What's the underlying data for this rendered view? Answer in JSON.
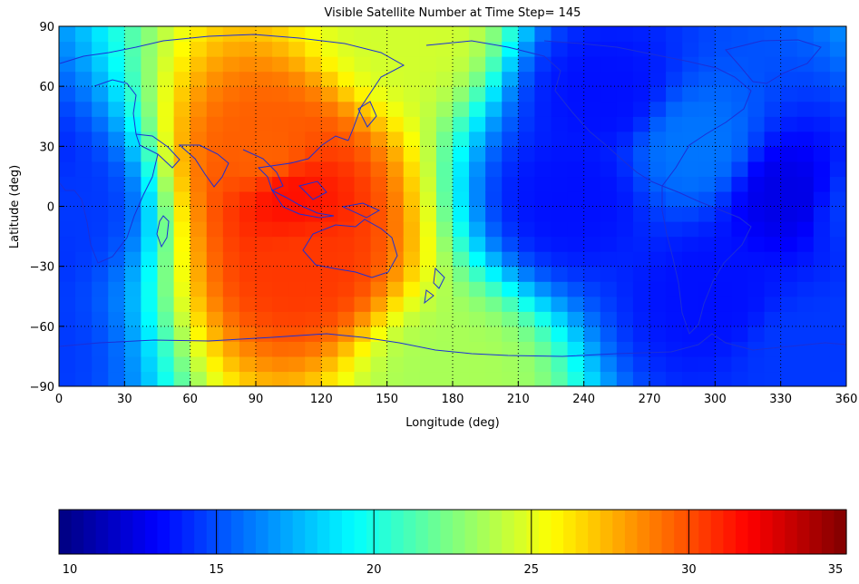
{
  "chart_data": [
    {
      "type": "heatmap",
      "title": "Visible Satellite Number at Time Step= 145",
      "xlabel": "Longitude (deg)",
      "ylabel": "Latitude (deg)",
      "xlim": [
        0,
        360
      ],
      "ylim": [
        -90,
        90
      ],
      "x_ticks": [
        0,
        30,
        60,
        90,
        120,
        150,
        180,
        210,
        240,
        270,
        300,
        330,
        360
      ],
      "y_ticks": [
        -90,
        -60,
        -30,
        0,
        30,
        60,
        90
      ],
      "x_tick_labels": [
        "0",
        "30",
        "60",
        "90",
        "120",
        "150",
        "180",
        "210",
        "240",
        "270",
        "300",
        "330",
        "360"
      ],
      "y_tick_labels": [
        "−90",
        "−60",
        "−30",
        "0",
        "30",
        "60",
        "90"
      ],
      "grid": "dotted",
      "overlay": "coastlines",
      "colormap": "jet",
      "clim": [
        10,
        35
      ],
      "color_scale": {
        "start_color": "#00008f",
        "end_color": "#800000"
      },
      "field_features": [
        {
          "lon": 105,
          "lat": 5,
          "value": 31.5
        },
        {
          "lon": 95,
          "lat": 25,
          "value": 29.5
        },
        {
          "lon": 110,
          "lat": -28,
          "value": 30.5
        },
        {
          "lon": 235,
          "lat": 5,
          "value": 13.5
        },
        {
          "lon": 250,
          "lat": 55,
          "value": 13.5
        },
        {
          "lon": 335,
          "lat": 5,
          "value": 12.5
        },
        {
          "lon": 300,
          "lat": -45,
          "value": 13.5
        },
        {
          "lon": 2,
          "lat": 0,
          "value": 14.5
        },
        {
          "lon": 160,
          "lat": 88,
          "value": 24.5
        },
        {
          "lon": 180,
          "lat": -85,
          "value": 23.5
        },
        {
          "lon": 290,
          "lat": 30,
          "value": 16.0
        },
        {
          "lon": 340,
          "lat": -72,
          "value": 14.5
        }
      ]
    },
    {
      "type": "colorbar",
      "colormap": "jet",
      "range": [
        10,
        35
      ],
      "ticks": [
        10,
        15,
        20,
        25,
        30,
        35
      ],
      "tick_labels": [
        "10",
        "15",
        "20",
        "25",
        "30",
        "35"
      ]
    }
  ]
}
